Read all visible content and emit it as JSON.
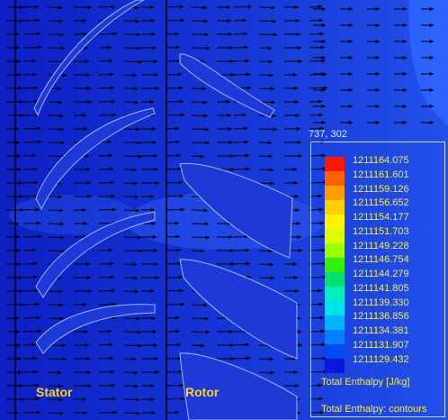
{
  "viewport": {
    "probe_readout": "737, 302",
    "stator_label": "Stator",
    "rotor_label": "Rotor"
  },
  "legend": {
    "title": "Total Enthalpy [J/kg]",
    "footer": "Total Enthalpy: contours",
    "levels": [
      {
        "value": "1211164.075",
        "color": "#ff1500"
      },
      {
        "value": "1211161.601",
        "color": "#ff6000"
      },
      {
        "value": "1211159.126",
        "color": "#ff9d00"
      },
      {
        "value": "1211156.652",
        "color": "#ffd000"
      },
      {
        "value": "1211154.177",
        "color": "#fff300"
      },
      {
        "value": "1211151.703",
        "color": "#dcff00"
      },
      {
        "value": "1211149.228",
        "color": "#9aff00"
      },
      {
        "value": "1211146.754",
        "color": "#33f00a"
      },
      {
        "value": "1211144.279",
        "color": "#00e070"
      },
      {
        "value": "1211141.805",
        "color": "#00f0c0"
      },
      {
        "value": "1211139.330",
        "color": "#00e2ee"
      },
      {
        "value": "1211136.856",
        "color": "#00b4ff"
      },
      {
        "value": "1211134.381",
        "color": "#0080ff"
      },
      {
        "value": "1211131.907",
        "color": "#0048f0"
      },
      {
        "value": "1211129.432",
        "color": "#0a18d8"
      }
    ]
  },
  "colors": {
    "field_dark": "#0b22c8",
    "field_light": "#2c5af4",
    "label_yellow": "#ffd21a",
    "arrow": "#000000"
  }
}
